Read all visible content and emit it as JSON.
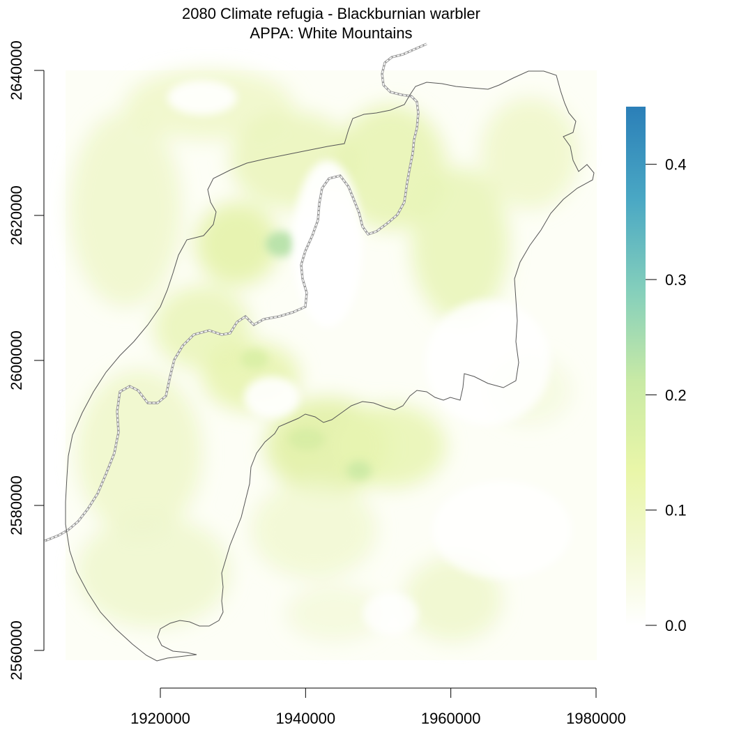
{
  "figure": {
    "title_line1": "2080 Climate refugia - Blackburnian warbler",
    "title_line2": "APPA: White Mountains"
  },
  "chart_data": {
    "type": "heatmap",
    "title": "2080 Climate refugia - Blackburnian warbler",
    "subtitle": "APPA: White Mountains",
    "x_ticks": [
      1920000,
      1940000,
      1960000,
      1980000
    ],
    "y_ticks": [
      2560000,
      2580000,
      2600000,
      2620000,
      2640000
    ],
    "x_tick_labels": [
      "1920000",
      "1940000",
      "1960000",
      "1980000"
    ],
    "y_tick_labels": [
      "2560000",
      "2580000",
      "2600000",
      "2620000",
      "2640000"
    ],
    "xlim": [
      1900000,
      1980000
    ],
    "ylim": [
      2558000,
      2640000
    ],
    "colorbar": {
      "range": [
        0.0,
        0.45
      ],
      "ticks": [
        0.0,
        0.1,
        0.2,
        0.3,
        0.4
      ],
      "tick_labels": [
        "0.0",
        "0.1",
        "0.2",
        "0.3",
        "0.4"
      ],
      "colors": [
        "#ffffff",
        "#f2f8d0",
        "#e6f5a8",
        "#c8eaa6",
        "#7fcdbb",
        "#41a5c5",
        "#2b7fb8"
      ]
    },
    "styles": {
      "boundary_color": "#555555",
      "trail_color": "#9a9a9a"
    }
  }
}
